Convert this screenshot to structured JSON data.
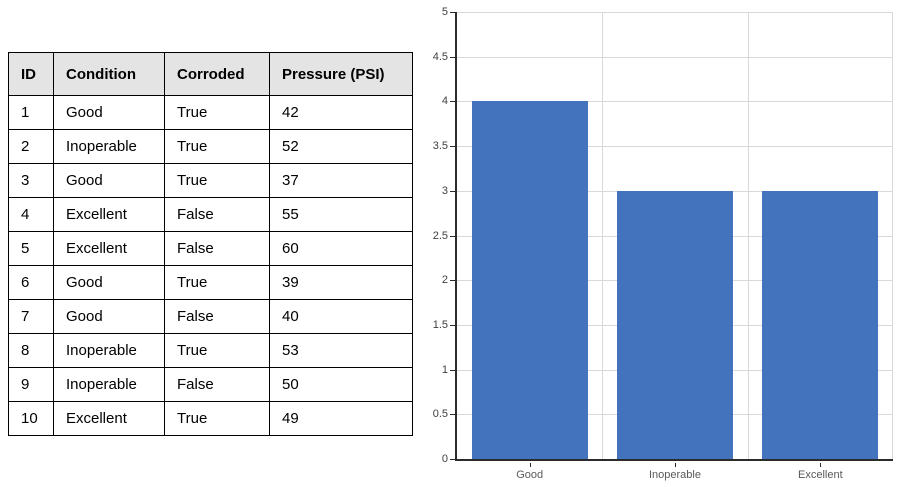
{
  "table": {
    "columns": [
      "ID",
      "Condition",
      "Corroded",
      "Pressure (PSI)"
    ],
    "rows": [
      [
        "1",
        "Good",
        "True",
        "42"
      ],
      [
        "2",
        "Inoperable",
        "True",
        "52"
      ],
      [
        "3",
        "Good",
        "True",
        "37"
      ],
      [
        "4",
        "Excellent",
        "False",
        "55"
      ],
      [
        "5",
        "Excellent",
        "False",
        "60"
      ],
      [
        "6",
        "Good",
        "True",
        "39"
      ],
      [
        "7",
        "Good",
        "False",
        "40"
      ],
      [
        "8",
        "Inoperable",
        "True",
        "53"
      ],
      [
        "9",
        "Inoperable",
        "False",
        "50"
      ],
      [
        "10",
        "Excellent",
        "True",
        "49"
      ]
    ],
    "header_bg": "#e4e4e4",
    "border_color": "#000000"
  },
  "chart_data": {
    "type": "bar",
    "categories": [
      "Good",
      "Inoperable",
      "Excellent"
    ],
    "values": [
      4,
      3,
      3
    ],
    "title": "",
    "xlabel": "",
    "ylabel": "",
    "ylim": [
      0,
      5
    ],
    "ytick_step": 0.5,
    "ytick_labels": [
      "0",
      "0.5",
      "1",
      "1.5",
      "2",
      "2.5",
      "3",
      "3.5",
      "4",
      "4.5",
      "5"
    ],
    "grid": true,
    "legend": "none",
    "bar_color": "#4273bc",
    "gridline_color": "#d9d9d9",
    "axis_color": "#2b2b2b",
    "ytick_label_color": "#404040",
    "xtick_label_color": "#595959"
  }
}
